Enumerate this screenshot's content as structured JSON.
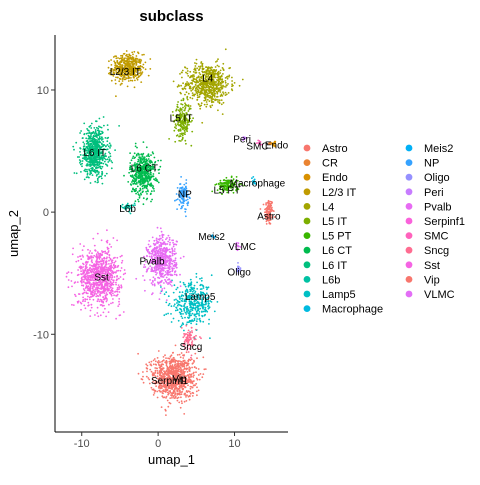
{
  "chart_data": {
    "type": "scatter",
    "title": "subclass",
    "xlabel": "umap_1",
    "ylabel": "umap_2",
    "xlim": [
      -13.5,
      17
    ],
    "ylim": [
      -18,
      14.5
    ],
    "xticks": [
      -10,
      0,
      10
    ],
    "yticks": [
      -10,
      0,
      10
    ],
    "xtick_labels": [
      "-10",
      "0",
      "10"
    ],
    "ytick_labels": [
      "-10",
      "0",
      "10"
    ],
    "grid": false,
    "legend_position": "right",
    "point_size": "small",
    "categories": [
      {
        "name": "Astro",
        "color": "#F8766D",
        "center": [
          14.5,
          0
        ],
        "spread": [
          0.5,
          1.0
        ],
        "n": 120,
        "label_pos": [
          14.5,
          -0.3
        ]
      },
      {
        "name": "CR",
        "color": "#EA8331",
        "center": [
          14.6,
          5.6
        ],
        "spread": [
          0.15,
          0.15
        ],
        "n": 8,
        "label_pos": [
          null,
          null
        ]
      },
      {
        "name": "Endo",
        "color": "#D89000",
        "center": [
          15.2,
          5.6
        ],
        "spread": [
          0.3,
          0.25
        ],
        "n": 25,
        "label_pos": [
          15.5,
          5.5
        ]
      },
      {
        "name": "L2/3 IT",
        "color": "#C09B00",
        "center": [
          -4.0,
          11.8
        ],
        "spread": [
          1.8,
          1.0
        ],
        "n": 450,
        "label_pos": [
          -4.3,
          11.5
        ]
      },
      {
        "name": "L4",
        "color": "#A3A500",
        "center": [
          6.5,
          10.5
        ],
        "spread": [
          2.6,
          1.5
        ],
        "n": 650,
        "label_pos": [
          6.5,
          11.0
        ]
      },
      {
        "name": "L5 IT",
        "color": "#7CAE00",
        "center": [
          3.2,
          7.5
        ],
        "spread": [
          1.0,
          1.3
        ],
        "n": 220,
        "label_pos": [
          3.0,
          7.7
        ]
      },
      {
        "name": "L5 PT",
        "color": "#39B600",
        "center": [
          9.2,
          2.2
        ],
        "spread": [
          1.3,
          0.5
        ],
        "n": 140,
        "label_pos": [
          9.0,
          1.8
        ]
      },
      {
        "name": "L6 CT",
        "color": "#00BB4E",
        "center": [
          -2.0,
          3.2
        ],
        "spread": [
          1.5,
          1.6
        ],
        "n": 500,
        "label_pos": [
          -1.8,
          3.6
        ]
      },
      {
        "name": "L6 IT",
        "color": "#00BF7D",
        "center": [
          -8.3,
          4.9
        ],
        "spread": [
          1.6,
          1.8
        ],
        "n": 650,
        "label_pos": [
          -8.3,
          4.9
        ]
      },
      {
        "name": "L6b",
        "color": "#00C1A3",
        "center": [
          -4.0,
          0.4
        ],
        "spread": [
          0.8,
          0.3
        ],
        "n": 40,
        "label_pos": [
          -4.0,
          0.3
        ]
      },
      {
        "name": "Lamp5",
        "color": "#00BFC4",
        "center": [
          4.5,
          -7.5
        ],
        "spread": [
          2.5,
          1.5
        ],
        "n": 380,
        "label_pos": [
          5.5,
          -6.9
        ]
      },
      {
        "name": "Macrophage",
        "color": "#00BAE0",
        "center": [
          12.5,
          2.5
        ],
        "spread": [
          0.3,
          0.25
        ],
        "n": 15,
        "label_pos": [
          13.0,
          2.4
        ]
      },
      {
        "name": "Meis2",
        "color": "#00B0F6",
        "center": [
          7.2,
          -2.1
        ],
        "spread": [
          0.2,
          0.2
        ],
        "n": 6,
        "label_pos": [
          7.0,
          -2.0
        ]
      },
      {
        "name": "NP",
        "color": "#35A2FF",
        "center": [
          3.3,
          1.4
        ],
        "spread": [
          0.6,
          0.9
        ],
        "n": 110,
        "label_pos": [
          3.5,
          1.5
        ]
      },
      {
        "name": "Oligo",
        "color": "#9590FF",
        "center": [
          10.5,
          -4.6
        ],
        "spread": [
          0.3,
          0.3
        ],
        "n": 15,
        "label_pos": [
          10.6,
          -4.9
        ]
      },
      {
        "name": "Peri",
        "color": "#C77CFF",
        "center": [
          11.3,
          6.0
        ],
        "spread": [
          0.3,
          0.2
        ],
        "n": 12,
        "label_pos": [
          11.0,
          6.0
        ]
      },
      {
        "name": "Pvalb",
        "color": "#E76BF3",
        "center": [
          0.5,
          -4.0
        ],
        "spread": [
          1.7,
          1.8
        ],
        "n": 550,
        "label_pos": [
          -0.8,
          -4.0
        ]
      },
      {
        "name": "Serpinf1",
        "color": "#FA62DB",
        "center": [
          2.4,
          -13.8
        ],
        "spread": [
          0.3,
          0.3
        ],
        "n": 10,
        "label_pos": [
          1.5,
          -13.8
        ]
      },
      {
        "name": "SMC",
        "color": "#FF62BC",
        "center": [
          13.3,
          5.7
        ],
        "spread": [
          0.3,
          0.2
        ],
        "n": 10,
        "label_pos": [
          13.0,
          5.4
        ]
      },
      {
        "name": "Sncg",
        "color": "#FF6C91",
        "center": [
          4.0,
          -10.5
        ],
        "spread": [
          0.9,
          0.9
        ],
        "n": 80,
        "label_pos": [
          4.3,
          -11.0
        ]
      },
      {
        "name": "Sst",
        "color": "#F564E3",
        "center": [
          -7.7,
          -5.3
        ],
        "spread": [
          2.5,
          2.1
        ],
        "n": 850,
        "label_pos": [
          -7.4,
          -5.3
        ]
      },
      {
        "name": "Vip",
        "color": "#F8766D",
        "center": [
          2.0,
          -13.5
        ],
        "spread": [
          2.6,
          1.6
        ],
        "n": 900,
        "label_pos": [
          2.8,
          -13.6
        ]
      },
      {
        "name": "VLMC",
        "color": "#E36EF6",
        "center": [
          10.5,
          -2.8
        ],
        "spread": [
          0.3,
          0.3
        ],
        "n": 12,
        "label_pos": [
          11.0,
          -2.8
        ]
      }
    ]
  }
}
